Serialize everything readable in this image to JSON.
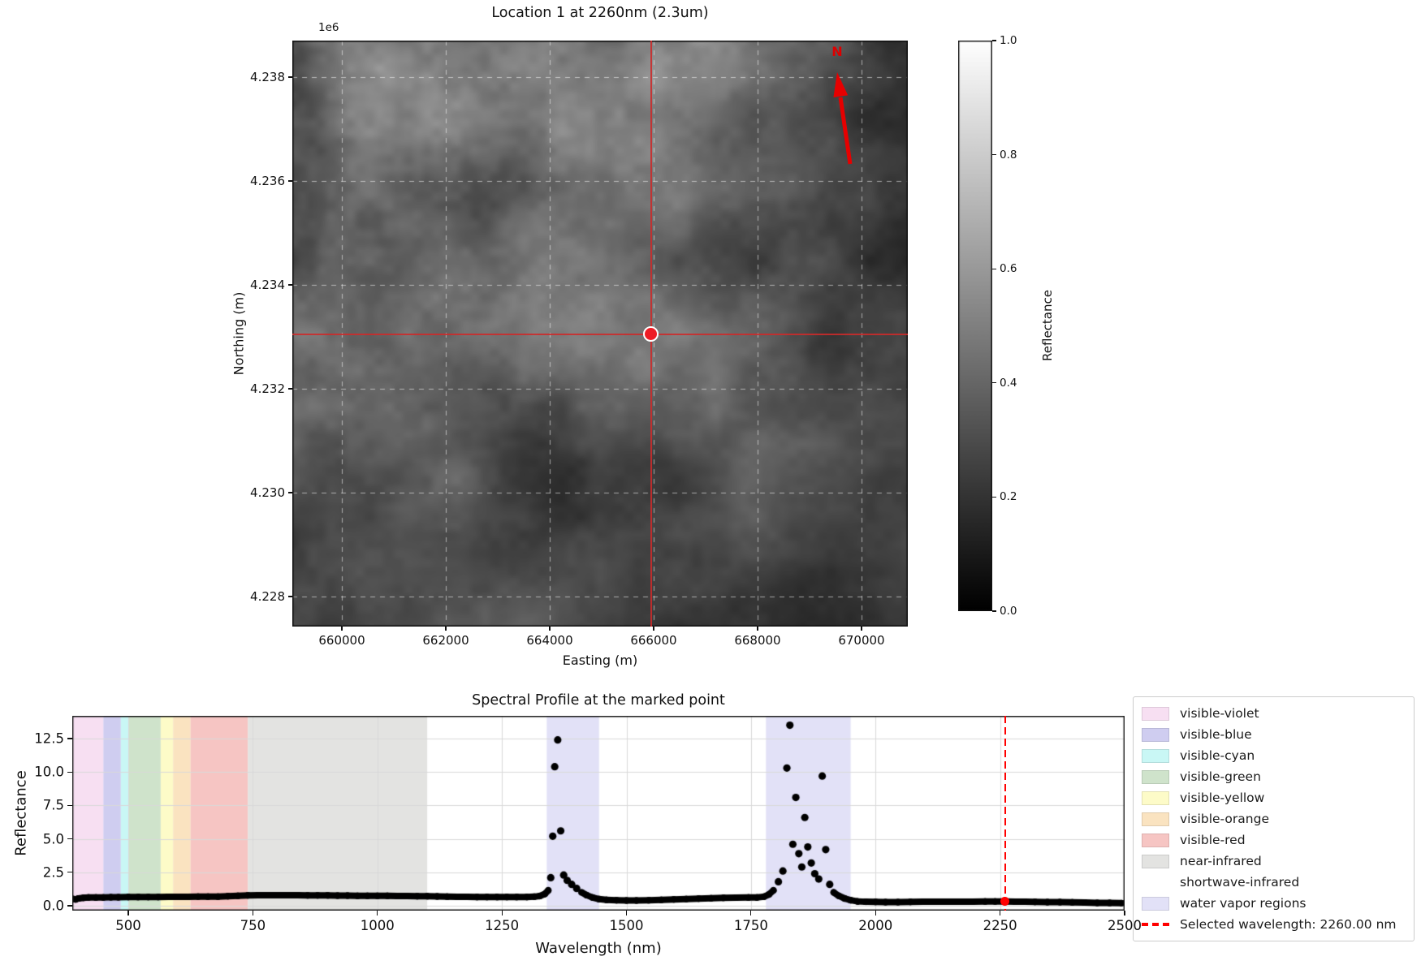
{
  "chart_data": [
    {
      "type": "heatmap",
      "title": "Location 1 at 2260nm (2.3um)",
      "xlabel": "Easting (m)",
      "ylabel": "Northing (m)",
      "offset_text": "1e6",
      "north_label": "N",
      "x_ticks": {
        "values": [
          660000,
          662000,
          664000,
          666000,
          668000,
          670000
        ],
        "labels": [
          "660000",
          "662000",
          "664000",
          "666000",
          "668000",
          "670000"
        ]
      },
      "y_ticks": {
        "values": [
          4238000,
          4236000,
          4234000,
          4232000,
          4230000,
          4228000
        ],
        "labels": [
          "4.238",
          "4.236",
          "4.234",
          "4.232",
          "4.230",
          "4.228"
        ]
      },
      "xlim": [
        659047,
        670891
      ],
      "ylim": [
        4227422,
        4238703
      ],
      "grid": true,
      "cmap": "gray",
      "value_range": [
        0.0,
        1.0
      ],
      "colorbar": {
        "label": "Reflectance",
        "tick_values": [
          1.0,
          0.8,
          0.6,
          0.4,
          0.2,
          0.0
        ],
        "tick_labels": [
          "1.0",
          "0.8",
          "0.6",
          "0.4",
          "0.2",
          "0.0"
        ]
      },
      "marked_point": {
        "easting": 665950,
        "northing": 4233050
      },
      "colors": {
        "crosshair": "#cd2a2a",
        "marker_fill": "#ee1c25",
        "marker_edge": "#ffffff",
        "north_arrow": "#e60000"
      }
    },
    {
      "type": "scatter",
      "title": "Spectral Profile at the marked point",
      "xlabel": "Wavelength (nm)",
      "ylabel": "Reflectance",
      "xlim": [
        387.5,
        2500
      ],
      "ylim": [
        -0.36,
        14.2
      ],
      "grid": true,
      "marker_color": "#000000",
      "x_ticks": {
        "values": [
          500,
          750,
          1000,
          1250,
          1500,
          1750,
          2000,
          2250,
          2500
        ],
        "labels": [
          "500",
          "750",
          "1000",
          "1250",
          "1500",
          "1750",
          "2000",
          "2250",
          "2500"
        ]
      },
      "y_ticks": {
        "values": [
          0.0,
          2.5,
          5.0,
          7.5,
          10.0,
          12.5
        ],
        "labels": [
          "0.0",
          "2.5",
          "5.0",
          "7.5",
          "10.0",
          "12.5"
        ]
      },
      "points": [
        [
          388,
          0.52
        ],
        [
          394,
          0.48
        ],
        [
          400,
          0.55
        ],
        [
          410,
          0.6
        ],
        [
          420,
          0.62
        ],
        [
          435,
          0.62
        ],
        [
          450,
          0.63
        ],
        [
          465,
          0.64
        ],
        [
          480,
          0.64
        ],
        [
          500,
          0.65
        ],
        [
          520,
          0.65
        ],
        [
          540,
          0.66
        ],
        [
          560,
          0.66
        ],
        [
          580,
          0.67
        ],
        [
          600,
          0.67
        ],
        [
          620,
          0.67
        ],
        [
          640,
          0.68
        ],
        [
          660,
          0.68
        ],
        [
          680,
          0.69
        ],
        [
          700,
          0.71
        ],
        [
          720,
          0.74
        ],
        [
          740,
          0.78
        ],
        [
          760,
          0.8
        ],
        [
          780,
          0.8
        ],
        [
          800,
          0.8
        ],
        [
          820,
          0.79
        ],
        [
          840,
          0.79
        ],
        [
          860,
          0.78
        ],
        [
          880,
          0.78
        ],
        [
          900,
          0.77
        ],
        [
          920,
          0.76
        ],
        [
          940,
          0.76
        ],
        [
          960,
          0.75
        ],
        [
          980,
          0.75
        ],
        [
          1000,
          0.75
        ],
        [
          1020,
          0.74
        ],
        [
          1040,
          0.73
        ],
        [
          1060,
          0.73
        ],
        [
          1080,
          0.72
        ],
        [
          1100,
          0.71
        ],
        [
          1120,
          0.7
        ],
        [
          1140,
          0.68
        ],
        [
          1160,
          0.67
        ],
        [
          1180,
          0.67
        ],
        [
          1200,
          0.66
        ],
        [
          1220,
          0.66
        ],
        [
          1240,
          0.65
        ],
        [
          1260,
          0.65
        ],
        [
          1280,
          0.65
        ],
        [
          1300,
          0.66
        ],
        [
          1315,
          0.68
        ],
        [
          1326,
          0.73
        ],
        [
          1336,
          0.88
        ],
        [
          1343,
          1.15
        ],
        [
          1348,
          2.1
        ],
        [
          1352,
          5.2
        ],
        [
          1356,
          10.4
        ],
        [
          1362,
          12.4
        ],
        [
          1368,
          5.6
        ],
        [
          1374,
          2.3
        ],
        [
          1381,
          1.9
        ],
        [
          1390,
          1.6
        ],
        [
          1400,
          1.3
        ],
        [
          1410,
          1.0
        ],
        [
          1420,
          0.8
        ],
        [
          1432,
          0.62
        ],
        [
          1445,
          0.5
        ],
        [
          1460,
          0.44
        ],
        [
          1480,
          0.41
        ],
        [
          1500,
          0.4
        ],
        [
          1520,
          0.4
        ],
        [
          1545,
          0.41
        ],
        [
          1570,
          0.44
        ],
        [
          1595,
          0.47
        ],
        [
          1620,
          0.51
        ],
        [
          1645,
          0.54
        ],
        [
          1670,
          0.57
        ],
        [
          1695,
          0.59
        ],
        [
          1720,
          0.61
        ],
        [
          1745,
          0.62
        ],
        [
          1762,
          0.63
        ],
        [
          1776,
          0.68
        ],
        [
          1786,
          0.85
        ],
        [
          1795,
          1.15
        ],
        [
          1805,
          1.8
        ],
        [
          1814,
          2.6
        ],
        [
          1822,
          10.3
        ],
        [
          1828,
          13.5
        ],
        [
          1834,
          4.6
        ],
        [
          1840,
          8.1
        ],
        [
          1846,
          3.9
        ],
        [
          1852,
          2.9
        ],
        [
          1858,
          6.6
        ],
        [
          1864,
          4.4
        ],
        [
          1871,
          3.2
        ],
        [
          1878,
          2.4
        ],
        [
          1886,
          2.0
        ],
        [
          1893,
          9.7
        ],
        [
          1900,
          4.2
        ],
        [
          1908,
          1.6
        ],
        [
          1916,
          1.0
        ],
        [
          1926,
          0.75
        ],
        [
          1938,
          0.55
        ],
        [
          1950,
          0.42
        ],
        [
          1964,
          0.33
        ],
        [
          1980,
          0.3
        ],
        [
          2000,
          0.29
        ],
        [
          2020,
          0.28
        ],
        [
          2045,
          0.28
        ],
        [
          2070,
          0.29
        ],
        [
          2095,
          0.3
        ],
        [
          2120,
          0.3
        ],
        [
          2145,
          0.3
        ],
        [
          2170,
          0.3
        ],
        [
          2195,
          0.31
        ],
        [
          2220,
          0.32
        ],
        [
          2240,
          0.33
        ],
        [
          2260,
          0.32
        ],
        [
          2280,
          0.31
        ],
        [
          2300,
          0.3
        ],
        [
          2320,
          0.29
        ],
        [
          2345,
          0.28
        ],
        [
          2370,
          0.27
        ],
        [
          2395,
          0.26
        ],
        [
          2420,
          0.24
        ],
        [
          2445,
          0.22
        ],
        [
          2470,
          0.21
        ],
        [
          2494,
          0.2
        ]
      ],
      "bands": [
        {
          "name": "visible-violet",
          "range": [
            387.5,
            450
          ],
          "color": "#f7dff2"
        },
        {
          "name": "visible-blue",
          "range": [
            450,
            485
          ],
          "color": "#cfcdf0"
        },
        {
          "name": "visible-cyan",
          "range": [
            485,
            500
          ],
          "color": "#c9f7f5"
        },
        {
          "name": "visible-green",
          "range": [
            500,
            565
          ],
          "color": "#cfe3cb"
        },
        {
          "name": "visible-yellow",
          "range": [
            565,
            590
          ],
          "color": "#fdfbc8"
        },
        {
          "name": "visible-orange",
          "range": [
            590,
            625
          ],
          "color": "#fae3c0"
        },
        {
          "name": "visible-red",
          "range": [
            625,
            740
          ],
          "color": "#f6c5c3"
        },
        {
          "name": "near-infrared",
          "range": [
            740,
            1100
          ],
          "color": "#e3e3e1"
        },
        {
          "name": "water-vapor-1",
          "range": [
            1340,
            1445
          ],
          "color": "#e2e1f7"
        },
        {
          "name": "water-vapor-2",
          "range": [
            1780,
            1950
          ],
          "color": "#e2e1f7"
        }
      ],
      "selected": {
        "wavelength_nm": 2260.0,
        "reflectance_at_selected": 0.32,
        "line_color": "#ff0000",
        "label": "Selected wavelength: 2260.00 nm"
      },
      "legend": {
        "position": "right",
        "entries": [
          {
            "label": "visible-violet",
            "swatch": "patch",
            "color": "#f7dff2"
          },
          {
            "label": "visible-blue",
            "swatch": "patch",
            "color": "#cfcdf0"
          },
          {
            "label": "visible-cyan",
            "swatch": "patch",
            "color": "#c9f7f5"
          },
          {
            "label": "visible-green",
            "swatch": "patch",
            "color": "#cfe3cb"
          },
          {
            "label": "visible-yellow",
            "swatch": "patch",
            "color": "#fdfbc8"
          },
          {
            "label": "visible-orange",
            "swatch": "patch",
            "color": "#fae3c0"
          },
          {
            "label": "visible-red",
            "swatch": "patch",
            "color": "#f6c5c3"
          },
          {
            "label": "near-infrared",
            "swatch": "patch",
            "color": "#e3e3e1"
          },
          {
            "label": "shortwave-infrared",
            "swatch": "none",
            "color": "transparent"
          },
          {
            "label": "water vapor regions",
            "swatch": "patch",
            "color": "#e2e1f7"
          },
          {
            "label": "Selected wavelength: 2260.00 nm",
            "swatch": "dashed-line",
            "color": "#ff0000"
          }
        ]
      }
    }
  ]
}
